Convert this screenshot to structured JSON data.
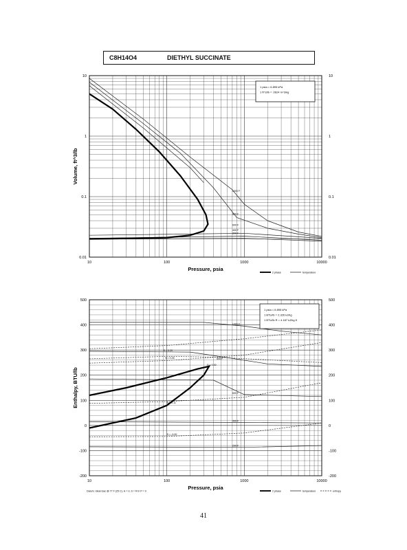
{
  "header": {
    "formula": "C8H14O4",
    "compound": "DIETHYL SUCCINATE"
  },
  "page_number": "41",
  "chart_data": [
    {
      "type": "line",
      "xscale": "log",
      "yscale": "log",
      "xlim": [
        10,
        10000
      ],
      "ylim": [
        0.01,
        10
      ],
      "xlabel": "Pressure, psia",
      "ylabel": "Volume, ft^3/lb",
      "x_ticks": [
        "10",
        "100",
        "1000",
        "10000"
      ],
      "y_ticks_left": [
        "10",
        "1",
        "0.1",
        "0.01"
      ],
      "y_ticks_right": [
        "10",
        "1",
        "0.1",
        "0.01"
      ],
      "grid": true,
      "notes": [
        "1 psia = 6.895 kPa",
        "1 ft^3/lb = .0624 m^3/kg"
      ],
      "legend": [
        "2 phase",
        "temperature"
      ],
      "legend_position": "bottom-right",
      "two_phase": [
        {
          "x": 10,
          "y": 5.0
        },
        {
          "x": 20,
          "y": 2.8
        },
        {
          "x": 40,
          "y": 1.3
        },
        {
          "x": 80,
          "y": 0.55
        },
        {
          "x": 150,
          "y": 0.22
        },
        {
          "x": 250,
          "y": 0.09
        },
        {
          "x": 320,
          "y": 0.05
        },
        {
          "x": 340,
          "y": 0.035
        },
        {
          "x": 300,
          "y": 0.027
        },
        {
          "x": 200,
          "y": 0.023
        },
        {
          "x": 100,
          "y": 0.021
        },
        {
          "x": 40,
          "y": 0.0205
        },
        {
          "x": 10,
          "y": 0.02
        }
      ],
      "isotherms": [
        {
          "name": "1000 F",
          "points": [
            {
              "x": 10,
              "y": 9.0
            },
            {
              "x": 50,
              "y": 1.9
            },
            {
              "x": 200,
              "y": 0.45
            },
            {
              "x": 700,
              "y": 0.13
            },
            {
              "x": 1000,
              "y": 0.075
            },
            {
              "x": 2000,
              "y": 0.04
            },
            {
              "x": 5000,
              "y": 0.026
            },
            {
              "x": 10000,
              "y": 0.022
            }
          ]
        },
        {
          "name": "800 F",
          "points": [
            {
              "x": 10,
              "y": 7.8
            },
            {
              "x": 50,
              "y": 1.6
            },
            {
              "x": 150,
              "y": 0.52
            },
            {
              "x": 400,
              "y": 0.14
            },
            {
              "x": 800,
              "y": 0.045
            },
            {
              "x": 2000,
              "y": 0.03
            },
            {
              "x": 5000,
              "y": 0.024
            },
            {
              "x": 10000,
              "y": 0.021
            }
          ]
        },
        {
          "name": "600 F",
          "points": [
            {
              "x": 10,
              "y": 6.8
            },
            {
              "x": 50,
              "y": 1.35
            },
            {
              "x": 200,
              "y": 0.3
            },
            {
              "x": 300,
              "y": 0.17
            }
          ]
        },
        {
          "name": "600 F",
          "points": [
            {
              "x": 10,
              "y": 0.023
            },
            {
              "x": 1000,
              "y": 0.0248
            },
            {
              "x": 10000,
              "y": 0.0205
            }
          ]
        },
        {
          "name": "400 F",
          "points": [
            {
              "x": 10,
              "y": 0.0205
            },
            {
              "x": 1000,
              "y": 0.0222
            },
            {
              "x": 10000,
              "y": 0.019
            }
          ]
        },
        {
          "name": "200 F",
          "points": [
            {
              "x": 10,
              "y": 0.0198
            },
            {
              "x": 1000,
              "y": 0.0205
            },
            {
              "x": 10000,
              "y": 0.0183
            }
          ]
        }
      ]
    },
    {
      "type": "line",
      "xscale": "log",
      "xlim": [
        10,
        10000
      ],
      "ylim": [
        -200,
        500
      ],
      "xlabel": "Pressure, psia",
      "ylabel": "Enthalpy, BTU/lb",
      "x_ticks": [
        "10",
        "100",
        "1000",
        "10000"
      ],
      "y_ticks_left": [
        "500",
        "400",
        "300",
        "200",
        "100",
        "0",
        "-100",
        "-200"
      ],
      "y_ticks_right": [
        "500",
        "400",
        "300",
        "200",
        "100",
        "0",
        "-100",
        "-200"
      ],
      "grid": true,
      "notes": [
        "1 psia = 6.895 kPa",
        "1 BTU/lb = 2.326 kJ/kg",
        "1 BTU/lb R = 4.187 kJ/kg K"
      ],
      "datum": "Datum: Ideal Gas @ 77 F (25 C), H = 0, S = R ln P = 0",
      "legend": [
        "2 phase",
        "temperature",
        "entropy"
      ],
      "legend_position": "bottom-right",
      "two_phase": [
        {
          "x": 10,
          "y": 120
        },
        {
          "x": 30,
          "y": 150
        },
        {
          "x": 100,
          "y": 190
        },
        {
          "x": 250,
          "y": 225
        },
        {
          "x": 350,
          "y": 235
        },
        {
          "x": 300,
          "y": 200
        },
        {
          "x": 200,
          "y": 150
        },
        {
          "x": 100,
          "y": 80
        },
        {
          "x": 40,
          "y": 30
        },
        {
          "x": 10,
          "y": -10
        }
      ],
      "isotherms": [
        {
          "name": "1000 F",
          "points": [
            {
              "x": 10,
              "y": 410
            },
            {
              "x": 300,
              "y": 410
            },
            {
              "x": 1000,
              "y": 395
            },
            {
              "x": 3000,
              "y": 375
            },
            {
              "x": 10000,
              "y": 360
            }
          ]
        },
        {
          "name": "800 F",
          "points": [
            {
              "x": 10,
              "y": 295
            },
            {
              "x": 200,
              "y": 292
            },
            {
              "x": 600,
              "y": 270
            },
            {
              "x": 2000,
              "y": 245
            },
            {
              "x": 10000,
              "y": 235
            }
          ]
        },
        {
          "name": "600 F",
          "points": [
            {
              "x": 10,
              "y": 185
            },
            {
              "x": 400,
              "y": 180
            },
            {
              "x": 1000,
              "y": 123
            },
            {
              "x": 10000,
              "y": 115
            }
          ]
        },
        {
          "name": "400 F",
          "points": [
            {
              "x": 10,
              "y": 15
            },
            {
              "x": 1000,
              "y": 12
            },
            {
              "x": 10000,
              "y": 10
            }
          ]
        },
        {
          "name": "200 F",
          "points": [
            {
              "x": 10,
              "y": -85
            },
            {
              "x": 1000,
              "y": -87
            },
            {
              "x": 10000,
              "y": -80
            }
          ]
        }
      ],
      "entropy_lines": [
        {
          "name": "S = 0.30",
          "points": [
            {
              "x": 10,
              "y": 305
            },
            {
              "x": 100,
              "y": 318
            },
            {
              "x": 1000,
              "y": 345
            },
            {
              "x": 10000,
              "y": 380
            }
          ]
        },
        {
          "name": "S = 0.25",
          "points": [
            {
              "x": 10,
              "y": 265
            },
            {
              "x": 100,
              "y": 275
            },
            {
              "x": 400,
              "y": 272
            },
            {
              "x": 10000,
              "y": 250
            }
          ]
        },
        {
          "name": "S = 0.20",
          "points": [
            {
              "x": 10,
              "y": 248
            },
            {
              "x": 100,
              "y": 258
            },
            {
              "x": 1000,
              "y": 280
            },
            {
              "x": 10000,
              "y": 330
            }
          ]
        },
        {
          "name": "S = 0.11",
          "points": [
            {
              "x": 10,
              "y": 88
            },
            {
              "x": 100,
              "y": 95
            },
            {
              "x": 1000,
              "y": 112
            },
            {
              "x": 10000,
              "y": 170
            }
          ]
        },
        {
          "name": "S = -0.00",
          "points": [
            {
              "x": 10,
              "y": -45
            },
            {
              "x": 100,
              "y": -44
            },
            {
              "x": 1000,
              "y": -30
            },
            {
              "x": 10000,
              "y": 10
            }
          ]
        }
      ]
    }
  ]
}
